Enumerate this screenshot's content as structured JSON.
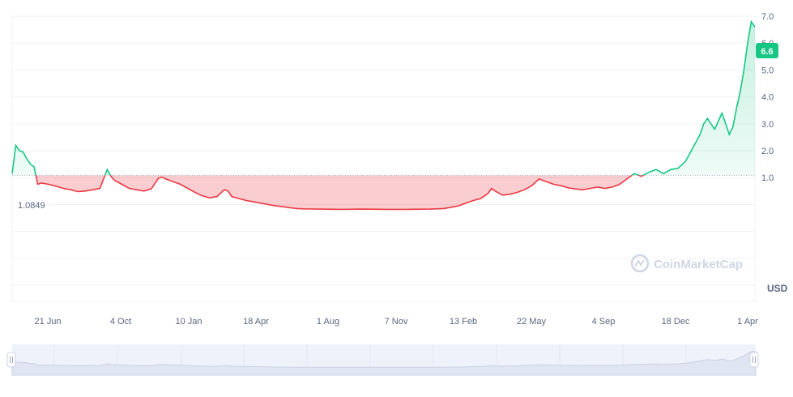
{
  "chart_data": {
    "type": "area",
    "currency_label": "USD",
    "watermark": "CoinMarketCap",
    "baseline": {
      "value": 1.0849,
      "label": "1.0849"
    },
    "current_price": {
      "value": 6.6,
      "label": "6.6"
    },
    "y_axis": {
      "min": -3.6,
      "max": 7.0,
      "ticks": [
        1.0,
        2.0,
        3.0,
        4.0,
        5.0,
        6.0,
        7.0
      ],
      "tick_labels": [
        "1.0",
        "2.0",
        "3.0",
        "4.0",
        "5.0",
        "6.0",
        "7.0"
      ]
    },
    "x_labels": [
      "21 Jun",
      "4 Oct",
      "10 Jan",
      "18 Apr",
      "1 Aug",
      "7 Nov",
      "13 Feb",
      "22 May",
      "4 Sep",
      "18 Dec",
      "1 Apr"
    ],
    "colors": {
      "up": "#16c784",
      "down": "#ea3943",
      "up_fill": "#16c78422",
      "down_fill": "#ea394340"
    },
    "series": [
      {
        "points": [
          [
            0,
            1.15
          ],
          [
            1,
            2.2
          ],
          [
            2,
            2.0
          ],
          [
            3,
            1.95
          ],
          [
            4,
            1.7
          ],
          [
            5,
            1.5
          ],
          [
            6,
            1.4
          ],
          [
            7,
            0.75
          ],
          [
            8,
            0.8
          ],
          [
            10,
            0.75
          ],
          [
            12,
            0.68
          ],
          [
            14,
            0.6
          ],
          [
            16,
            0.55
          ],
          [
            18,
            0.48
          ],
          [
            20,
            0.5
          ],
          [
            22,
            0.55
          ],
          [
            24,
            0.6
          ],
          [
            26,
            1.3
          ],
          [
            27,
            1.05
          ],
          [
            28,
            0.9
          ],
          [
            30,
            0.75
          ],
          [
            32,
            0.6
          ],
          [
            34,
            0.55
          ],
          [
            36,
            0.5
          ],
          [
            38,
            0.58
          ],
          [
            40,
            0.98
          ],
          [
            41,
            1.02
          ],
          [
            42,
            0.95
          ],
          [
            44,
            0.85
          ],
          [
            46,
            0.75
          ],
          [
            48,
            0.6
          ],
          [
            50,
            0.45
          ],
          [
            52,
            0.32
          ],
          [
            54,
            0.25
          ],
          [
            56,
            0.3
          ],
          [
            58,
            0.55
          ],
          [
            59,
            0.5
          ],
          [
            60,
            0.3
          ],
          [
            62,
            0.22
          ],
          [
            64,
            0.15
          ],
          [
            66,
            0.1
          ],
          [
            68,
            0.05
          ],
          [
            70,
            0.0
          ],
          [
            72,
            -0.05
          ],
          [
            74,
            -0.08
          ],
          [
            76,
            -0.12
          ],
          [
            78,
            -0.15
          ],
          [
            80,
            -0.16
          ],
          [
            84,
            -0.17
          ],
          [
            90,
            -0.18
          ],
          [
            96,
            -0.17
          ],
          [
            102,
            -0.18
          ],
          [
            108,
            -0.18
          ],
          [
            114,
            -0.17
          ],
          [
            118,
            -0.15
          ],
          [
            120,
            -0.1
          ],
          [
            122,
            -0.05
          ],
          [
            124,
            0.05
          ],
          [
            126,
            0.15
          ],
          [
            128,
            0.22
          ],
          [
            130,
            0.4
          ],
          [
            131,
            0.6
          ],
          [
            132,
            0.5
          ],
          [
            134,
            0.35
          ],
          [
            136,
            0.38
          ],
          [
            138,
            0.45
          ],
          [
            140,
            0.55
          ],
          [
            142,
            0.7
          ],
          [
            144,
            0.95
          ],
          [
            146,
            0.85
          ],
          [
            148,
            0.75
          ],
          [
            150,
            0.7
          ],
          [
            152,
            0.62
          ],
          [
            154,
            0.58
          ],
          [
            156,
            0.55
          ],
          [
            158,
            0.6
          ],
          [
            160,
            0.65
          ],
          [
            162,
            0.6
          ],
          [
            164,
            0.65
          ],
          [
            166,
            0.75
          ],
          [
            168,
            0.95
          ],
          [
            170,
            1.15
          ],
          [
            172,
            1.05
          ],
          [
            174,
            1.2
          ],
          [
            176,
            1.3
          ],
          [
            178,
            1.15
          ],
          [
            180,
            1.3
          ],
          [
            182,
            1.35
          ],
          [
            184,
            1.6
          ],
          [
            186,
            2.1
          ],
          [
            188,
            2.6
          ],
          [
            189,
            3.0
          ],
          [
            190,
            3.2
          ],
          [
            191,
            3.0
          ],
          [
            192,
            2.8
          ],
          [
            193,
            3.1
          ],
          [
            194,
            3.4
          ],
          [
            195,
            3.0
          ],
          [
            196,
            2.6
          ],
          [
            197,
            2.9
          ],
          [
            198,
            3.6
          ],
          [
            199,
            4.2
          ],
          [
            200,
            5.0
          ],
          [
            201,
            6.0
          ],
          [
            202,
            6.8
          ],
          [
            203,
            6.6
          ]
        ]
      }
    ]
  }
}
